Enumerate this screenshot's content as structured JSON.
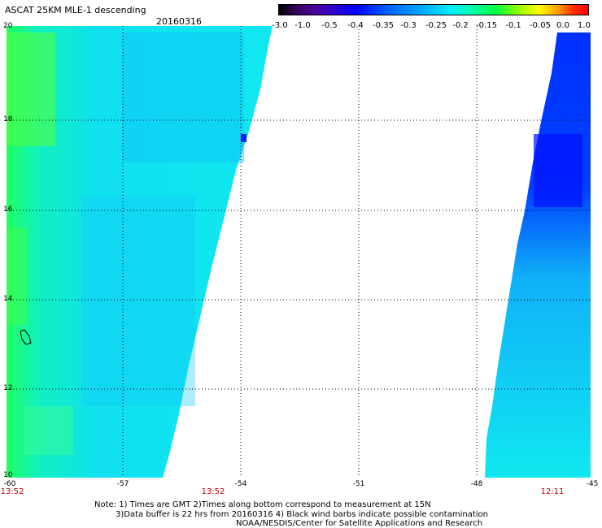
{
  "header": {
    "title": "ASCAT 25KM MLE-1 descending",
    "date": "20160316"
  },
  "colorbar": {
    "labels": [
      "-3.0",
      "-1.0",
      "-0.5",
      "-0.4",
      "-0.35",
      "-0.3",
      "-0.25",
      "-0.2",
      "-0.15",
      "-0.1",
      "-0.05",
      "0.0",
      "1.0"
    ]
  },
  "axes": {
    "y_labels": [
      "20",
      "18",
      "16",
      "14",
      "12",
      "10"
    ],
    "x_labels": [
      "-60",
      "-57",
      "-54",
      "-51",
      "-48",
      "-45"
    ],
    "time_labels": [
      "13:52",
      "13:52",
      "12:11"
    ]
  },
  "notes": {
    "line1": "Note: 1) Times are GMT 2)Times along bottom correspond to measurement at 15N",
    "line2": "3)Data buffer is 22 hrs from 20160316 4) Black wind barbs indicate possible contamination",
    "line3": "NOAA/NESDIS/Center for Satellite Applications and Research"
  },
  "colors": {
    "swath_base": "#10e8f0",
    "deep_blue": "#0030ff",
    "green": "#30ff30"
  }
}
